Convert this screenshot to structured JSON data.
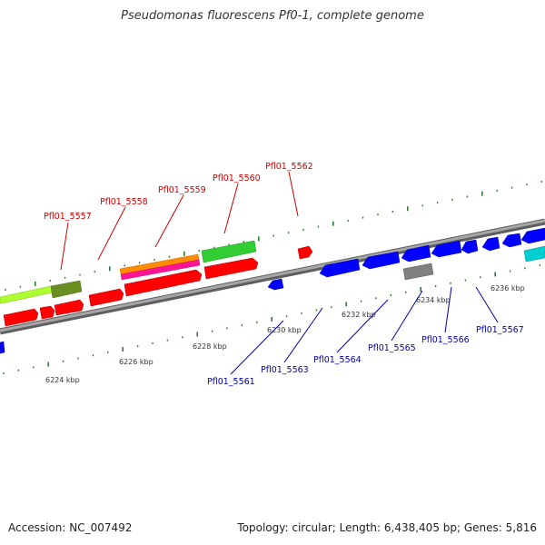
{
  "title": "Pseudomonas fluorescens Pf0-1, complete genome",
  "footer": {
    "accession": "Accession: NC_007492",
    "summary": "Topology: circular; Length: 6,438,405 bp; Genes: 5,816"
  },
  "colors": {
    "forward_label": "#cc0000",
    "reverse_label": "#0000aa",
    "backbone": "#8a8a8a",
    "tick": "#2e7d32"
  },
  "ticks": [
    {
      "label": "6224 kbp"
    },
    {
      "label": "6226 kbp"
    },
    {
      "label": "6228 kbp"
    },
    {
      "label": "6230 kbp"
    },
    {
      "label": "6232 kbp"
    },
    {
      "label": "6234 kbp"
    },
    {
      "label": "6236 kbp"
    }
  ],
  "genes_forward": [
    {
      "id": "Pfl01_5557"
    },
    {
      "id": "Pfl01_5558"
    },
    {
      "id": "Pfl01_5559"
    },
    {
      "id": "Pfl01_5560"
    },
    {
      "id": "Pfl01_5562"
    }
  ],
  "genes_reverse": [
    {
      "id": "Pfl01_5561"
    },
    {
      "id": "Pfl01_5563"
    },
    {
      "id": "Pfl01_5564"
    },
    {
      "id": "Pfl01_5565"
    },
    {
      "id": "Pfl01_5566"
    },
    {
      "id": "Pfl01_5567"
    }
  ]
}
